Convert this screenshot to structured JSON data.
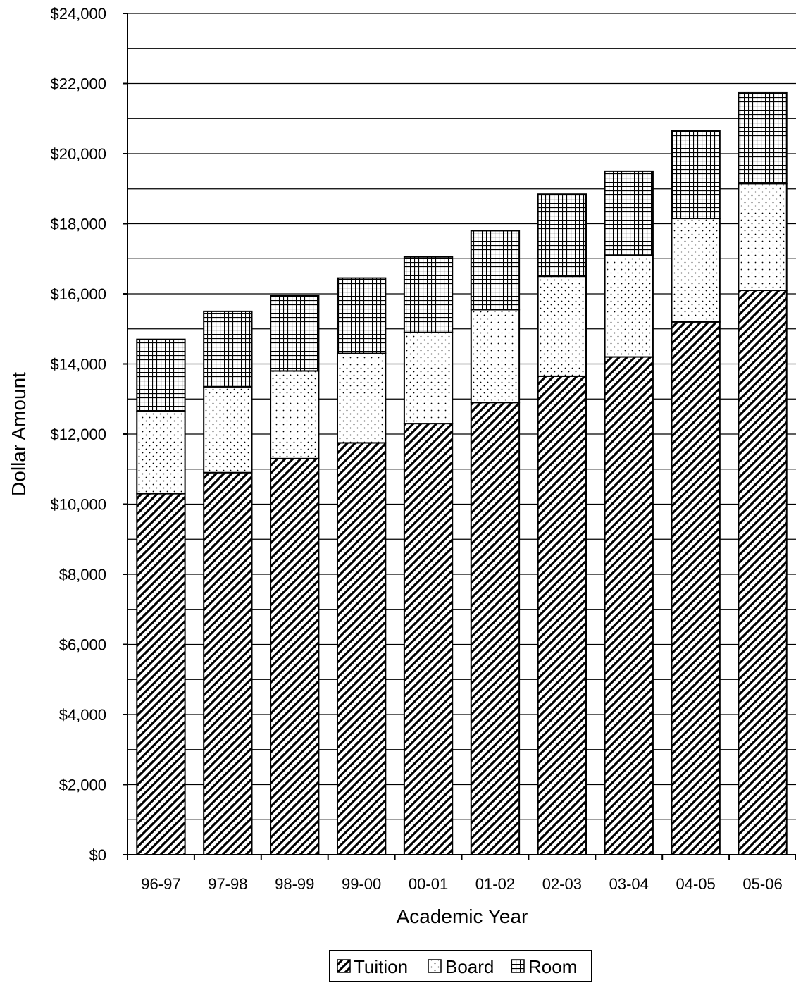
{
  "chart_data": {
    "type": "bar",
    "stacked": true,
    "title": "",
    "xlabel": "Academic Year",
    "ylabel": "Dollar Amount",
    "ylim": [
      0,
      24000
    ],
    "y_tick_step": 2000,
    "y_minor_step": 1000,
    "y_tick_labels": [
      "$0",
      "$2,000",
      "$4,000",
      "$6,000",
      "$8,000",
      "$10,000",
      "$12,000",
      "$14,000",
      "$16,000",
      "$18,000",
      "$20,000",
      "$22,000",
      "$24,000"
    ],
    "grid": true,
    "legend_position": "bottom",
    "categories": [
      "96-97",
      "97-98",
      "98-99",
      "99-00",
      "00-01",
      "01-02",
      "02-03",
      "03-04",
      "04-05",
      "05-06"
    ],
    "series": [
      {
        "name": "Tuition",
        "pattern": "diagonal-hatch",
        "values": [
          10300,
          10900,
          11300,
          11750,
          12300,
          12900,
          13650,
          14200,
          15200,
          16100
        ]
      },
      {
        "name": "Board",
        "pattern": "dots",
        "values": [
          2350,
          2450,
          2500,
          2550,
          2600,
          2650,
          2850,
          2900,
          2950,
          3050
        ]
      },
      {
        "name": "Room",
        "pattern": "grid",
        "values": [
          2050,
          2150,
          2150,
          2150,
          2150,
          2250,
          2350,
          2400,
          2500,
          2600
        ]
      }
    ],
    "colors": {
      "stroke": "#000000",
      "fill": "#ffffff"
    }
  }
}
